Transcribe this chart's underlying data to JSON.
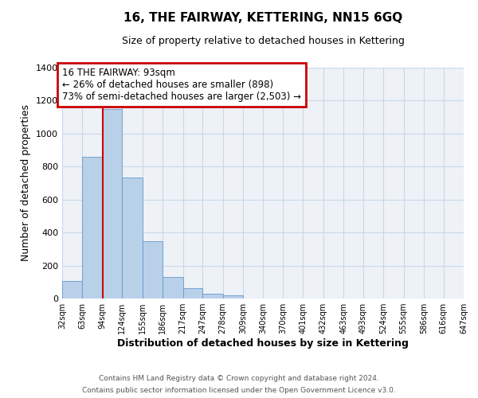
{
  "title": "16, THE FAIRWAY, KETTERING, NN15 6GQ",
  "subtitle": "Size of property relative to detached houses in Kettering",
  "xlabel": "Distribution of detached houses by size in Kettering",
  "ylabel": "Number of detached properties",
  "bar_color": "#b8d0e8",
  "bar_edge_color": "#6699cc",
  "grid_color": "#c8d8e8",
  "background_color": "#eef2f7",
  "annotation_box_color": "#cc0000",
  "vline_color": "#cc0000",
  "vline_x": 93,
  "annotation_title": "16 THE FAIRWAY: 93sqm",
  "annotation_line1": "← 26% of detached houses are smaller (898)",
  "annotation_line2": "73% of semi-detached houses are larger (2,503) →",
  "bin_edges": [
    32,
    63,
    94,
    124,
    155,
    186,
    217,
    247,
    278,
    309,
    340,
    370,
    401,
    432,
    463,
    493,
    524,
    555,
    586,
    616,
    647
  ],
  "bin_labels": [
    "32sqm",
    "63sqm",
    "94sqm",
    "124sqm",
    "155sqm",
    "186sqm",
    "217sqm",
    "247sqm",
    "278sqm",
    "309sqm",
    "340sqm",
    "370sqm",
    "401sqm",
    "432sqm",
    "463sqm",
    "493sqm",
    "524sqm",
    "555sqm",
    "586sqm",
    "616sqm",
    "647sqm"
  ],
  "bar_heights": [
    107,
    860,
    1147,
    733,
    349,
    130,
    62,
    31,
    20,
    0,
    0,
    0,
    0,
    0,
    0,
    0,
    0,
    0,
    0,
    0
  ],
  "ylim": [
    0,
    1400
  ],
  "yticks": [
    0,
    200,
    400,
    600,
    800,
    1000,
    1200,
    1400
  ],
  "footer1": "Contains HM Land Registry data © Crown copyright and database right 2024.",
  "footer2": "Contains public sector information licensed under the Open Government Licence v3.0."
}
